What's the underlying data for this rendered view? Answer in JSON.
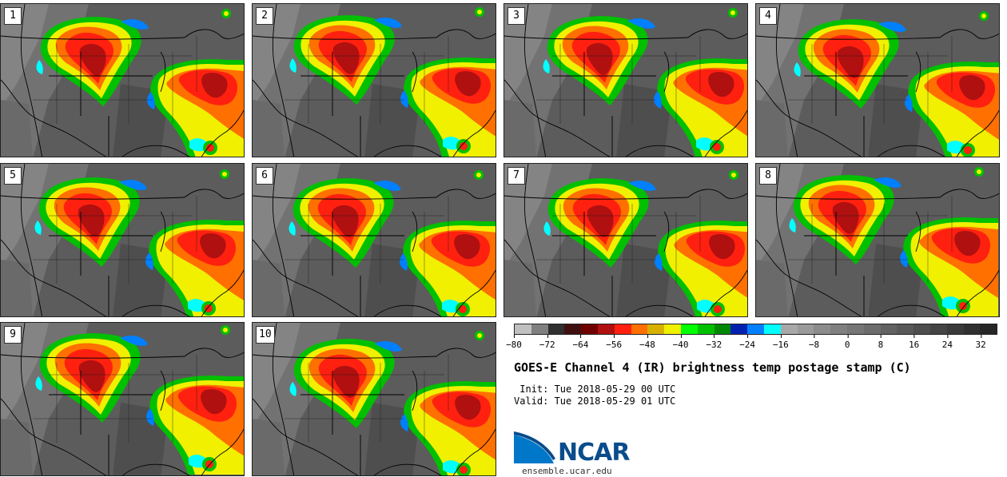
{
  "panels": [
    {
      "label": "1",
      "shift": [
        0,
        0
      ]
    },
    {
      "label": "2",
      "shift": [
        2,
        -2
      ]
    },
    {
      "label": "3",
      "shift": [
        4,
        -1
      ]
    },
    {
      "label": "4",
      "shift": [
        3,
        3
      ]
    },
    {
      "label": "5",
      "shift": [
        -2,
        1
      ]
    },
    {
      "label": "6",
      "shift": [
        1,
        2
      ]
    },
    {
      "label": "7",
      "shift": [
        5,
        2
      ]
    },
    {
      "label": "8",
      "shift": [
        -3,
        -2
      ]
    },
    {
      "label": "9",
      "shift": [
        -1,
        -3
      ]
    },
    {
      "label": "10",
      "shift": [
        2,
        4
      ]
    }
  ],
  "colorbar": {
    "colors": [
      "#c0c0c0",
      "#808080",
      "#303030",
      "#401010",
      "#700000",
      "#b01010",
      "#ff2010",
      "#ff7000",
      "#d8b000",
      "#f0f000",
      "#00ff00",
      "#00c000",
      "#008800",
      "#0020b0",
      "#0080ff",
      "#00ffff",
      "#a8a8a8",
      "#9a9a9a",
      "#8c8c8c",
      "#808080",
      "#767676",
      "#6c6c6c",
      "#626262",
      "#585858",
      "#4e4e4e",
      "#444444",
      "#3a3a3a",
      "#303030",
      "#262626"
    ],
    "ticks": [
      "−80",
      "−72",
      "−64",
      "−56",
      "−48",
      "−40",
      "−32",
      "−24",
      "−16",
      "−8",
      "0",
      "8",
      "16",
      "24",
      "32"
    ]
  },
  "title": "GOES-E Channel 4 (IR) brightness temp postage stamp (C)",
  "init": " Init: Tue 2018-05-29 00 UTC",
  "valid": "Valid: Tue 2018-05-29 01 UTC",
  "logo": {
    "text": "NCAR",
    "brand_color": "#0a4c8c",
    "accent_color": "#0077c8"
  },
  "website": "ensemble.ucar.edu"
}
